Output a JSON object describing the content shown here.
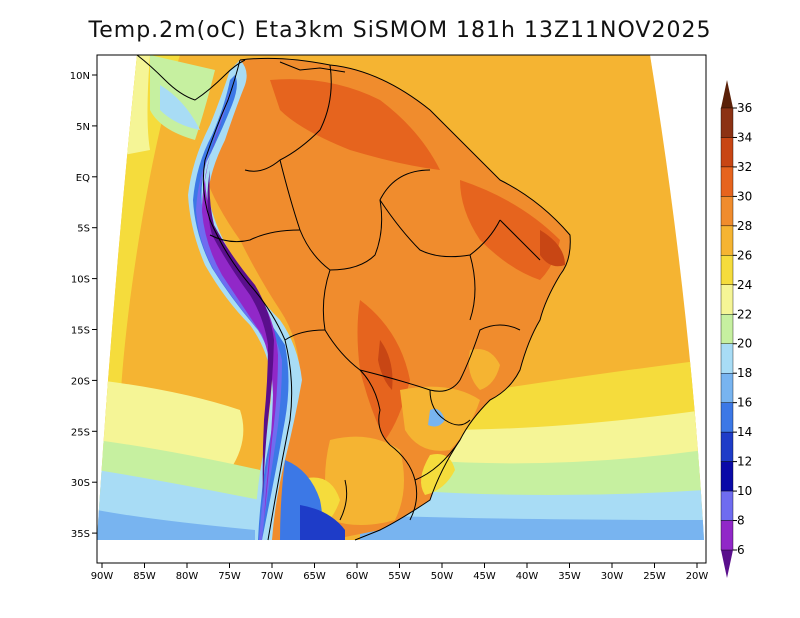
{
  "title": "Temp.2m(oC) Eta3km SiSMOM 181h 13Z11NOV2025",
  "lat_labels": [
    "10N",
    "5N",
    "EQ",
    "5S",
    "10S",
    "15S",
    "20S",
    "25S",
    "30S",
    "35S"
  ],
  "lon_labels": [
    "90W",
    "85W",
    "80W",
    "75W",
    "70W",
    "65W",
    "60W",
    "55W",
    "50W",
    "45W",
    "40W",
    "35W",
    "30W",
    "25W",
    "20W"
  ],
  "colorbar": {
    "labels": [
      "6",
      "8",
      "10",
      "12",
      "14",
      "16",
      "18",
      "20",
      "22",
      "24",
      "26",
      "28",
      "30",
      "32",
      "34",
      "36"
    ],
    "colors": [
      "#5a0f8c",
      "#9128c8",
      "#6f6cf0",
      "#0a0aa8",
      "#1e3cc8",
      "#3c78e6",
      "#78b4f0",
      "#a8dcf5",
      "#c6f0a0",
      "#f5f596",
      "#f5dc3c",
      "#f5b432",
      "#f08c2d",
      "#e6641e",
      "#c84614",
      "#8c3214",
      "#5a2008"
    ]
  },
  "icons": {
    "arrow_top": "triangle-up",
    "arrow_bottom": "triangle-down"
  }
}
